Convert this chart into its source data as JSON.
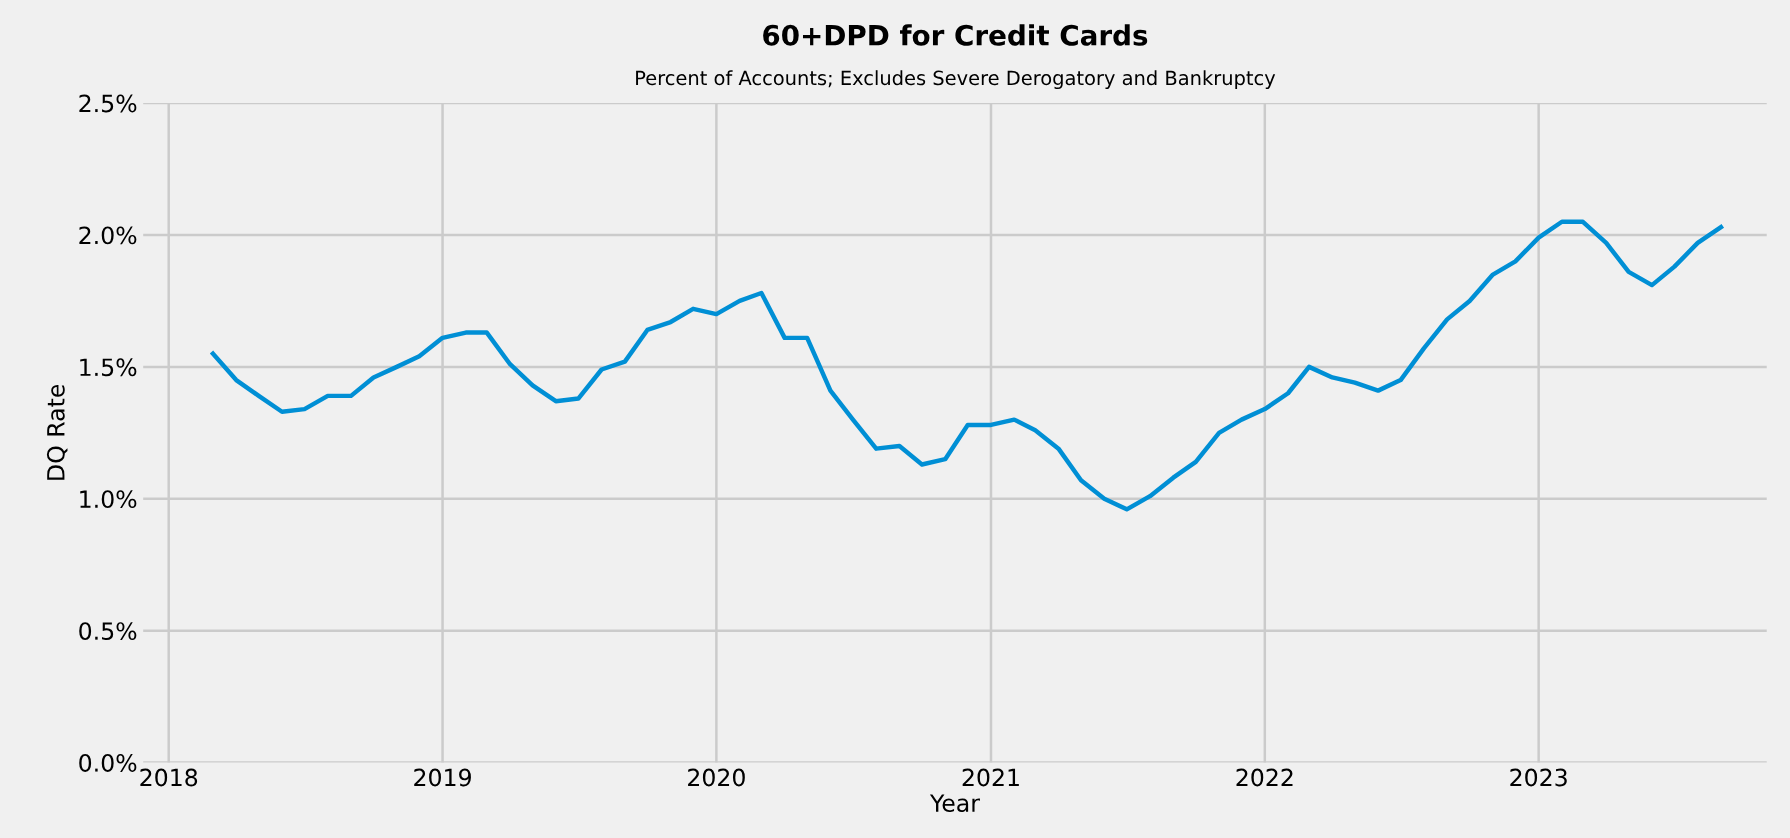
{
  "chart_data": {
    "type": "line",
    "title": "60+DPD for Credit Cards",
    "subtitle": "Percent of Accounts; Excludes Severe Derogatory and Bankruptcy",
    "xlabel": "Year",
    "ylabel": "DQ Rate",
    "x": [
      "2018-03",
      "2018-04",
      "2018-05",
      "2018-06",
      "2018-07",
      "2018-08",
      "2018-09",
      "2018-10",
      "2018-11",
      "2018-12",
      "2019-01",
      "2019-02",
      "2019-03",
      "2019-04",
      "2019-05",
      "2019-06",
      "2019-07",
      "2019-08",
      "2019-09",
      "2019-10",
      "2019-11",
      "2019-12",
      "2020-01",
      "2020-02",
      "2020-03",
      "2020-04",
      "2020-05",
      "2020-06",
      "2020-07",
      "2020-08",
      "2020-09",
      "2020-10",
      "2020-11",
      "2020-12",
      "2021-01",
      "2021-02",
      "2021-03",
      "2021-04",
      "2021-05",
      "2021-06",
      "2021-07",
      "2021-08",
      "2021-09",
      "2021-10",
      "2021-11",
      "2021-12",
      "2022-01",
      "2022-02",
      "2022-03",
      "2022-04",
      "2022-05",
      "2022-06",
      "2022-07",
      "2022-08",
      "2022-09",
      "2022-10",
      "2022-11",
      "2022-12",
      "2023-01",
      "2023-02",
      "2023-03",
      "2023-04",
      "2023-05",
      "2023-06",
      "2023-07",
      "2023-08",
      "2023-09"
    ],
    "series": [
      {
        "color": "#008fd5",
        "values": [
          1.55,
          1.45,
          1.39,
          1.33,
          1.34,
          1.39,
          1.39,
          1.46,
          1.5,
          1.54,
          1.61,
          1.63,
          1.63,
          1.51,
          1.43,
          1.37,
          1.38,
          1.49,
          1.52,
          1.64,
          1.67,
          1.72,
          1.7,
          1.75,
          1.78,
          1.61,
          1.61,
          1.41,
          1.3,
          1.19,
          1.2,
          1.13,
          1.15,
          1.28,
          1.28,
          1.3,
          1.26,
          1.19,
          1.07,
          1.0,
          0.96,
          1.01,
          1.08,
          1.14,
          1.25,
          1.3,
          1.34,
          1.4,
          1.5,
          1.46,
          1.44,
          1.41,
          1.45,
          1.57,
          1.68,
          1.75,
          1.85,
          1.9,
          1.99,
          2.05,
          2.05,
          1.97,
          1.86,
          1.81,
          1.88,
          1.97,
          2.03
        ]
      }
    ],
    "xlim": [
      "2017-11-28",
      "2023-11-01"
    ],
    "xticks": [
      {
        "value": "2018",
        "label": "2018"
      },
      {
        "value": "2019",
        "label": "2019"
      },
      {
        "value": "2020",
        "label": "2020"
      },
      {
        "value": "2021",
        "label": "2021"
      },
      {
        "value": "2022",
        "label": "2022"
      },
      {
        "value": "2023",
        "label": "2023"
      }
    ],
    "ylim": [
      0,
      2.5
    ],
    "yticks": [
      {
        "value": 0,
        "label": "0.0%"
      },
      {
        "value": 0.5,
        "label": "0.5%"
      },
      {
        "value": 1.0,
        "label": "1.0%"
      },
      {
        "value": 1.5,
        "label": "1.5%"
      },
      {
        "value": 2.0,
        "label": "2.0%"
      },
      {
        "value": 2.5,
        "label": "2.5%"
      }
    ],
    "grid": true,
    "line_style": "solid",
    "marker": "none"
  }
}
